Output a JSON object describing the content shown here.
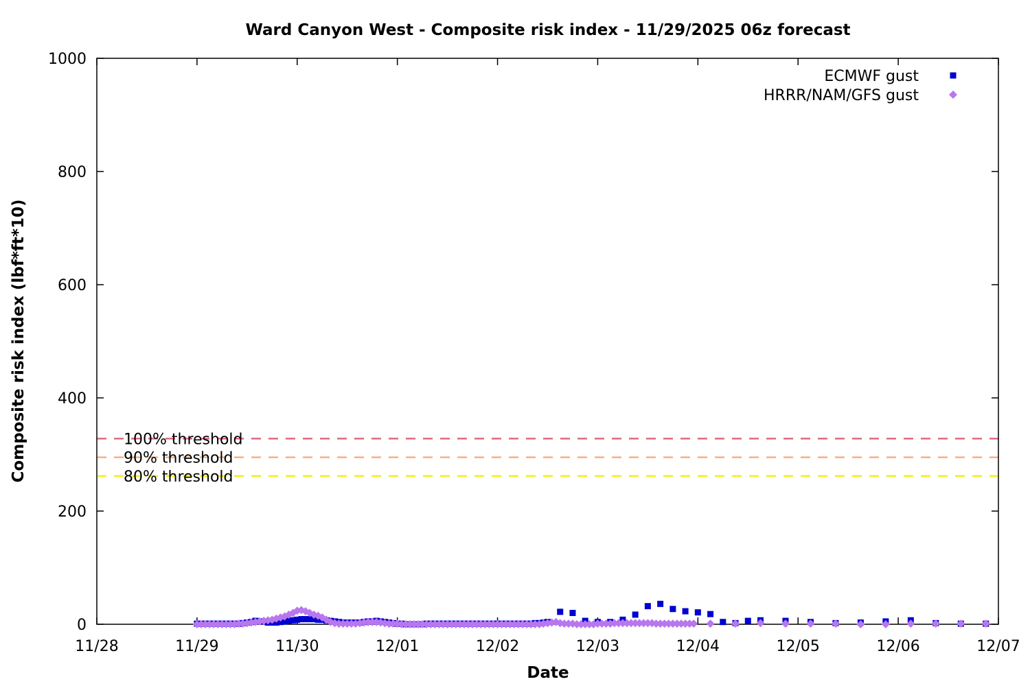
{
  "chart_data": {
    "type": "scatter",
    "title": "Ward Canyon West - Composite risk index - 11/29/2025 06z forecast",
    "xlabel": "Date",
    "ylabel": "Composite risk index (lbf*ft*10)",
    "x_ticks": [
      "11/28",
      "11/29",
      "11/30",
      "12/01",
      "12/02",
      "12/03",
      "12/04",
      "12/05",
      "12/06",
      "12/07"
    ],
    "y_ticks": [
      "0",
      "200",
      "400",
      "600",
      "800",
      "1000"
    ],
    "xlim": [
      "2025-11-28 00:00",
      "2025-12-07 00:00"
    ],
    "ylim": [
      0,
      1000
    ],
    "grid": false,
    "legend_position": "top-right",
    "thresholds": [
      {
        "label": "100% threshold",
        "value": 328,
        "color": "#e0677f"
      },
      {
        "label": "90% threshold",
        "value": 295,
        "color": "#f5b183"
      },
      {
        "label": "80% threshold",
        "value": 262,
        "color": "#f3f012"
      }
    ],
    "series": [
      {
        "name": "ECMWF gust",
        "marker": "square",
        "color": "#0000d0",
        "x": [
          "2025-11-29 00:00",
          "2025-11-29 01:00",
          "2025-11-29 02:00",
          "2025-11-29 03:00",
          "2025-11-29 04:00",
          "2025-11-29 05:00",
          "2025-11-29 06:00",
          "2025-11-29 07:00",
          "2025-11-29 08:00",
          "2025-11-29 09:00",
          "2025-11-29 10:00",
          "2025-11-29 11:00",
          "2025-11-29 12:00",
          "2025-11-29 13:00",
          "2025-11-29 14:00",
          "2025-11-29 15:00",
          "2025-11-29 16:00",
          "2025-11-29 17:00",
          "2025-11-29 18:00",
          "2025-11-29 19:00",
          "2025-11-29 20:00",
          "2025-11-29 21:00",
          "2025-11-29 22:00",
          "2025-11-29 23:00",
          "2025-11-30 00:00",
          "2025-11-30 01:00",
          "2025-11-30 02:00",
          "2025-11-30 03:00",
          "2025-11-30 04:00",
          "2025-11-30 05:00",
          "2025-11-30 06:00",
          "2025-11-30 07:00",
          "2025-11-30 08:00",
          "2025-11-30 09:00",
          "2025-11-30 10:00",
          "2025-11-30 11:00",
          "2025-11-30 12:00",
          "2025-11-30 13:00",
          "2025-11-30 14:00",
          "2025-11-30 15:00",
          "2025-11-30 16:00",
          "2025-11-30 17:00",
          "2025-11-30 18:00",
          "2025-11-30 19:00",
          "2025-11-30 20:00",
          "2025-11-30 21:00",
          "2025-11-30 22:00",
          "2025-11-30 23:00",
          "2025-12-01 00:00",
          "2025-12-01 01:00",
          "2025-12-01 02:00",
          "2025-12-01 03:00",
          "2025-12-01 04:00",
          "2025-12-01 05:00",
          "2025-12-01 06:00",
          "2025-12-01 07:00",
          "2025-12-01 08:00",
          "2025-12-01 09:00",
          "2025-12-01 10:00",
          "2025-12-01 11:00",
          "2025-12-01 12:00",
          "2025-12-01 13:00",
          "2025-12-01 14:00",
          "2025-12-01 15:00",
          "2025-12-01 16:00",
          "2025-12-01 17:00",
          "2025-12-01 18:00",
          "2025-12-01 19:00",
          "2025-12-01 20:00",
          "2025-12-01 21:00",
          "2025-12-01 22:00",
          "2025-12-01 23:00",
          "2025-12-02 00:00",
          "2025-12-02 01:00",
          "2025-12-02 02:00",
          "2025-12-02 03:00",
          "2025-12-02 04:00",
          "2025-12-02 05:00",
          "2025-12-02 06:00",
          "2025-12-02 07:00",
          "2025-12-02 08:00",
          "2025-12-02 09:00",
          "2025-12-02 10:00",
          "2025-12-02 11:00",
          "2025-12-02 12:00",
          "2025-12-02 15:00",
          "2025-12-02 18:00",
          "2025-12-02 21:00",
          "2025-12-03 00:00",
          "2025-12-03 03:00",
          "2025-12-03 06:00",
          "2025-12-03 09:00",
          "2025-12-03 12:00",
          "2025-12-03 15:00",
          "2025-12-03 18:00",
          "2025-12-03 21:00",
          "2025-12-04 00:00",
          "2025-12-04 03:00",
          "2025-12-04 06:00",
          "2025-12-04 09:00",
          "2025-12-04 12:00",
          "2025-12-04 15:00",
          "2025-12-04 21:00",
          "2025-12-05 03:00",
          "2025-12-05 09:00",
          "2025-12-05 15:00",
          "2025-12-05 21:00",
          "2025-12-06 03:00",
          "2025-12-06 09:00",
          "2025-12-06 15:00",
          "2025-12-06 21:00"
        ],
        "y": [
          1,
          1,
          1,
          1,
          1,
          1,
          1,
          1,
          1,
          1,
          1,
          2,
          3,
          4,
          6,
          5,
          5,
          3,
          3,
          3,
          4,
          5,
          6,
          7,
          8,
          9,
          9,
          9,
          9,
          8,
          8,
          7,
          6,
          5,
          4,
          3,
          3,
          3,
          3,
          3,
          4,
          5,
          5,
          6,
          5,
          4,
          3,
          2,
          1,
          1,
          0,
          0,
          0,
          0,
          0,
          1,
          1,
          1,
          1,
          1,
          1,
          1,
          1,
          1,
          1,
          1,
          1,
          1,
          1,
          1,
          1,
          1,
          1,
          1,
          1,
          1,
          1,
          1,
          1,
          1,
          1,
          2,
          2,
          3,
          4,
          22,
          20,
          6,
          4,
          4,
          8,
          17,
          32,
          36,
          27,
          23,
          21,
          18,
          4,
          2,
          6,
          7,
          6,
          4,
          2,
          3,
          5,
          7,
          2,
          1,
          1
        ]
      },
      {
        "name": "HRRR/NAM/GFS gust",
        "marker": "diamond",
        "color": "#b877ee",
        "x": [
          "2025-11-29 00:00",
          "2025-11-29 01:00",
          "2025-11-29 02:00",
          "2025-11-29 03:00",
          "2025-11-29 04:00",
          "2025-11-29 05:00",
          "2025-11-29 06:00",
          "2025-11-29 07:00",
          "2025-11-29 08:00",
          "2025-11-29 09:00",
          "2025-11-29 10:00",
          "2025-11-29 11:00",
          "2025-11-29 12:00",
          "2025-11-29 13:00",
          "2025-11-29 14:00",
          "2025-11-29 15:00",
          "2025-11-29 16:00",
          "2025-11-29 17:00",
          "2025-11-29 18:00",
          "2025-11-29 19:00",
          "2025-11-29 20:00",
          "2025-11-29 21:00",
          "2025-11-29 22:00",
          "2025-11-29 23:00",
          "2025-11-30 00:00",
          "2025-11-30 01:00",
          "2025-11-30 02:00",
          "2025-11-30 03:00",
          "2025-11-30 04:00",
          "2025-11-30 05:00",
          "2025-11-30 06:00",
          "2025-11-30 07:00",
          "2025-11-30 08:00",
          "2025-11-30 09:00",
          "2025-11-30 10:00",
          "2025-11-30 11:00",
          "2025-11-30 12:00",
          "2025-11-30 13:00",
          "2025-11-30 14:00",
          "2025-11-30 15:00",
          "2025-11-30 16:00",
          "2025-11-30 17:00",
          "2025-11-30 18:00",
          "2025-11-30 19:00",
          "2025-11-30 20:00",
          "2025-11-30 21:00",
          "2025-11-30 22:00",
          "2025-11-30 23:00",
          "2025-12-01 00:00",
          "2025-12-01 01:00",
          "2025-12-01 02:00",
          "2025-12-01 03:00",
          "2025-12-01 04:00",
          "2025-12-01 05:00",
          "2025-12-01 06:00",
          "2025-12-01 07:00",
          "2025-12-01 08:00",
          "2025-12-01 09:00",
          "2025-12-01 10:00",
          "2025-12-01 11:00",
          "2025-12-01 12:00",
          "2025-12-01 13:00",
          "2025-12-01 14:00",
          "2025-12-01 15:00",
          "2025-12-01 16:00",
          "2025-12-01 17:00",
          "2025-12-01 18:00",
          "2025-12-01 19:00",
          "2025-12-01 20:00",
          "2025-12-01 21:00",
          "2025-12-01 22:00",
          "2025-12-01 23:00",
          "2025-12-02 00:00",
          "2025-12-02 01:00",
          "2025-12-02 02:00",
          "2025-12-02 03:00",
          "2025-12-02 04:00",
          "2025-12-02 05:00",
          "2025-12-02 06:00",
          "2025-12-02 07:00",
          "2025-12-02 08:00",
          "2025-12-02 09:00",
          "2025-12-02 10:00",
          "2025-12-02 11:00",
          "2025-12-02 12:00",
          "2025-12-02 13:00",
          "2025-12-02 14:00",
          "2025-12-02 15:00",
          "2025-12-02 16:00",
          "2025-12-02 17:00",
          "2025-12-02 18:00",
          "2025-12-02 19:00",
          "2025-12-02 20:00",
          "2025-12-02 21:00",
          "2025-12-02 22:00",
          "2025-12-02 23:00",
          "2025-12-03 00:00",
          "2025-12-03 01:00",
          "2025-12-03 02:00",
          "2025-12-03 03:00",
          "2025-12-03 04:00",
          "2025-12-03 05:00",
          "2025-12-03 06:00",
          "2025-12-03 07:00",
          "2025-12-03 08:00",
          "2025-12-03 09:00",
          "2025-12-03 10:00",
          "2025-12-03 11:00",
          "2025-12-03 12:00",
          "2025-12-03 13:00",
          "2025-12-03 14:00",
          "2025-12-03 15:00",
          "2025-12-03 16:00",
          "2025-12-03 17:00",
          "2025-12-03 18:00",
          "2025-12-03 19:00",
          "2025-12-03 20:00",
          "2025-12-03 21:00",
          "2025-12-03 22:00",
          "2025-12-03 23:00",
          "2025-12-04 03:00",
          "2025-12-04 09:00",
          "2025-12-04 15:00",
          "2025-12-04 21:00",
          "2025-12-05 03:00",
          "2025-12-05 09:00",
          "2025-12-05 15:00",
          "2025-12-05 21:00",
          "2025-12-06 03:00",
          "2025-12-06 09:00",
          "2025-12-06 15:00",
          "2025-12-06 21:00"
        ],
        "y": [
          0,
          0,
          0,
          0,
          0,
          0,
          0,
          0,
          0,
          0,
          1,
          1,
          2,
          3,
          4,
          5,
          6,
          7,
          8,
          10,
          12,
          14,
          17,
          20,
          24,
          25,
          23,
          20,
          17,
          15,
          12,
          8,
          4,
          2,
          1,
          1,
          1,
          1,
          1,
          2,
          3,
          4,
          4,
          4,
          3,
          2,
          1,
          1,
          1,
          0,
          0,
          0,
          0,
          0,
          0,
          0,
          0,
          0,
          0,
          0,
          0,
          0,
          0,
          0,
          0,
          0,
          0,
          0,
          0,
          0,
          0,
          0,
          0,
          0,
          0,
          0,
          0,
          0,
          0,
          0,
          0,
          0,
          0,
          1,
          2,
          3,
          4,
          2,
          1,
          1,
          1,
          0,
          0,
          0,
          0,
          0,
          1,
          1,
          1,
          1,
          2,
          2,
          2,
          2,
          2,
          2,
          2,
          2,
          2,
          2,
          1,
          1,
          1,
          1,
          1,
          1,
          1,
          1,
          1,
          1,
          1,
          1,
          2,
          1,
          1,
          1,
          0,
          0,
          1,
          1,
          1,
          1
        ]
      }
    ]
  }
}
